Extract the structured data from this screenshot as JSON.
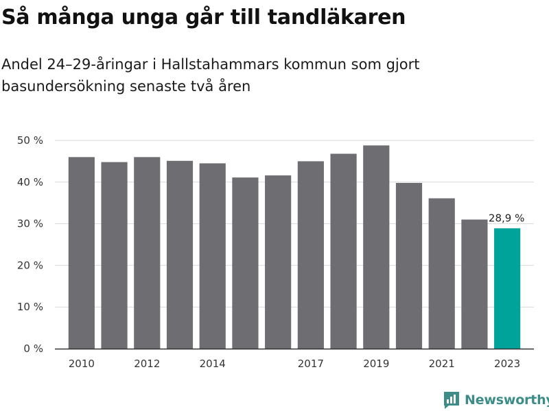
{
  "title": "Så många unga går till tandläkaren",
  "subtitle": "Andel 24–29-åringar i Hallstahammars kommun som gjort basundersökning senaste två åren",
  "brand": {
    "name": "Newsworthy",
    "icon": "newsworthy-logo-icon"
  },
  "colors": {
    "bar": "#6d6d72",
    "highlight": "#00a39a",
    "grid": "#d9d9d9",
    "axis": "#333333",
    "brand": "#3d8c87"
  },
  "chart_data": {
    "type": "bar",
    "categories": [
      "2010",
      "2011",
      "2012",
      "2013",
      "2014",
      "2015",
      "2016",
      "2017",
      "2018",
      "2019",
      "2020",
      "2021",
      "2022",
      "2023"
    ],
    "values": [
      46.0,
      44.8,
      46.0,
      45.1,
      44.5,
      41.1,
      41.6,
      45.0,
      46.8,
      48.8,
      39.8,
      36.1,
      31.0,
      28.9
    ],
    "x_tick_labels": [
      "2010",
      "2012",
      "2014",
      "2017",
      "2019",
      "2021",
      "2023"
    ],
    "y_ticks": [
      0,
      10,
      20,
      30,
      40,
      50
    ],
    "y_tick_labels": [
      "0 %",
      "10 %",
      "20 %",
      "30 %",
      "40 %",
      "50 %"
    ],
    "ylim": [
      0,
      50
    ],
    "grid": true,
    "highlight_index": 13,
    "annotations": [
      {
        "category": "2023",
        "text": "28,9 %"
      }
    ],
    "xlabel": "",
    "ylabel": ""
  }
}
